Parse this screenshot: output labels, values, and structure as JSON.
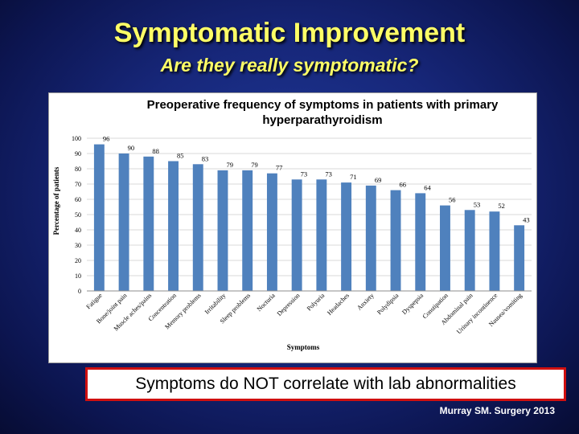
{
  "slide": {
    "title": "Symptomatic Improvement",
    "subtitle": "Are they really symptomatic?",
    "callout": "Symptoms do NOT correlate with lab abnormalities",
    "citation": "Murray SM. Surgery 2013"
  },
  "colors": {
    "background": "#17277a",
    "title": "#ffff66",
    "bar": "#4f81bd",
    "callout_border": "#d01010"
  },
  "chart_data": {
    "type": "bar",
    "title": "Preoperative frequency of symptoms in patients with primary hyperparathyroidism",
    "xlabel": "Symptoms",
    "ylabel": "Percentage of patients",
    "ylim": [
      0,
      100
    ],
    "yticks": [
      0,
      10,
      20,
      30,
      40,
      50,
      60,
      70,
      80,
      90,
      100
    ],
    "grid": true,
    "legend": "none",
    "categories": [
      "Fatigue",
      "Bone/joint pain",
      "Muscle aches/pains",
      "Concentration",
      "Memory problems",
      "Irritability",
      "Sleep problems",
      "Nocturia",
      "Depression",
      "Polyuria",
      "Headaches",
      "Anxiety",
      "Polydipsia",
      "Dyspepsia",
      "Constipation",
      "Abdominal pain",
      "Urinary incontinence",
      "Nausea/vomiting"
    ],
    "values": [
      96,
      90,
      88,
      85,
      83,
      79,
      79,
      77,
      73,
      73,
      71,
      69,
      66,
      64,
      56,
      53,
      52,
      43
    ]
  }
}
